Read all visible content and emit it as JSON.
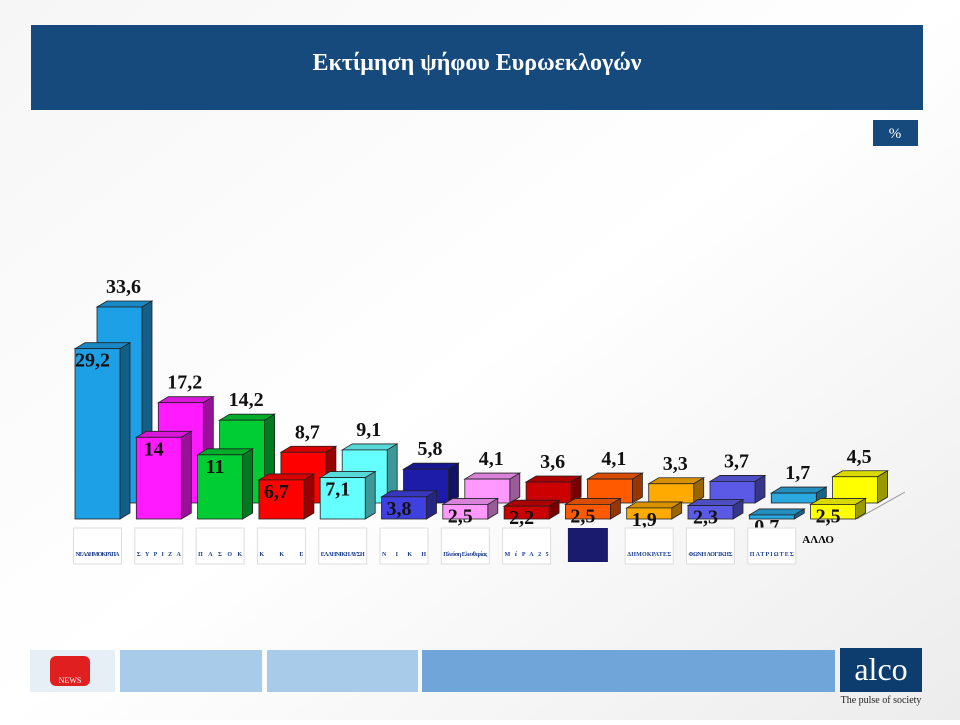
{
  "header": {
    "title": "Εκτίμηση ψήφου Ευρωεκλογών",
    "unit_badge": "%"
  },
  "chart_data": {
    "type": "bar3d",
    "categories": [
      "ΝΕΑ ΔΗΜΟΚΡΑΤΙΑ",
      "ΣΥΡΙΖΑ",
      "ΠΑΣΟΚ",
      "ΚΚΕ",
      "ΕΛΛΗΝΙΚΗ ΛΥΣΗ",
      "ΝΙΚΗ",
      "Πλεύση Ελευθερίας",
      "ΜέΡΑ25",
      null,
      "ΔΗΜΟΚΡΑΤΕΣ",
      "ΦΩΝΗ ΛΟΓΙΚΗΣ",
      "ΠΑΤΡΙΩΤΕΣ",
      "ΑΛΛΟ"
    ],
    "series": [
      {
        "colors": [
          "#1ea0e6",
          "#ff1aff",
          "#00cc33",
          "#ff0000",
          "#66ffff",
          "#1c1ca8",
          "#ff99ff",
          "#cc0000",
          "#ff5a00",
          "#ffaa00",
          "#5a5ae6",
          "#2aa8e0",
          "#ffff00"
        ],
        "values": [
          33.6,
          17.2,
          14.2,
          8.7,
          9.1,
          5.8,
          4.1,
          3.6,
          4.1,
          3.3,
          3.7,
          1.7,
          4.5
        ],
        "value_labels": [
          "33,6",
          "17,2",
          "14,2",
          "8,7",
          "9,1",
          "5,8",
          "4,1",
          "3,6",
          "4,1",
          "3,3",
          "3,7",
          "1,7",
          "4,5"
        ]
      },
      {
        "colors": [
          "#1ea0e6",
          "#ff1aff",
          "#00cc33",
          "#ff0000",
          "#66ffff",
          "#4040e0",
          "#ff99ff",
          "#cc0000",
          "#ff5a00",
          "#ffaa00",
          "#5a5ae6",
          "#2aa8e0",
          "#ffff00"
        ],
        "values": [
          29.2,
          14,
          11,
          6.7,
          7.1,
          3.8,
          2.5,
          2.2,
          2.5,
          1.9,
          2.3,
          0.7,
          2.5
        ],
        "value_labels": [
          "29,2",
          "14",
          "11",
          "6,7",
          "7,1",
          "3,8",
          "2,5",
          "2,2",
          "2,5",
          "1,9",
          "2,3",
          "0,7",
          "2,5"
        ]
      }
    ]
  },
  "footer": {
    "news": "NEWS",
    "brand": "alco",
    "tagline": "The pulse of society"
  }
}
